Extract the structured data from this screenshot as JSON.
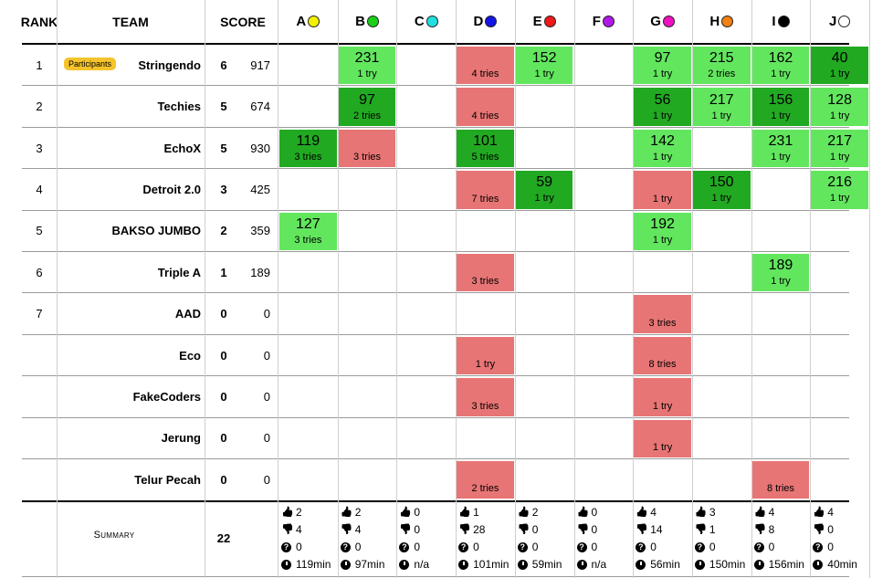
{
  "headers": {
    "rank": "RANK",
    "team": "TEAM",
    "score": "SCORE"
  },
  "problems": [
    {
      "label": "A",
      "color": "#f4f100"
    },
    {
      "label": "B",
      "color": "#18d018"
    },
    {
      "label": "C",
      "color": "#20e0e0"
    },
    {
      "label": "D",
      "color": "#1414e8"
    },
    {
      "label": "E",
      "color": "#f01818"
    },
    {
      "label": "F",
      "color": "#b018e8"
    },
    {
      "label": "G",
      "color": "#f010c0"
    },
    {
      "label": "H",
      "color": "#f08010"
    },
    {
      "label": "I",
      "color": "#000000"
    },
    {
      "label": "J",
      "color": "#ffffff"
    }
  ],
  "teams": [
    {
      "rank": "1",
      "name": "Stringendo",
      "badge": "Participants",
      "solved": "6",
      "points": "917",
      "cells": [
        null,
        {
          "t": "231",
          "tries": "1 try",
          "s": "solved"
        },
        null,
        {
          "tries": "4 tries",
          "s": "fail"
        },
        {
          "t": "152",
          "tries": "1 try",
          "s": "solved"
        },
        null,
        {
          "t": "97",
          "tries": "1 try",
          "s": "solved"
        },
        {
          "t": "215",
          "tries": "2 tries",
          "s": "solved"
        },
        {
          "t": "162",
          "tries": "1 try",
          "s": "solved"
        },
        {
          "t": "40",
          "tries": "1 try",
          "s": "first"
        }
      ]
    },
    {
      "rank": "2",
      "name": "Techies",
      "solved": "5",
      "points": "674",
      "cells": [
        null,
        {
          "t": "97",
          "tries": "2 tries",
          "s": "first"
        },
        null,
        {
          "tries": "4 tries",
          "s": "fail"
        },
        null,
        null,
        {
          "t": "56",
          "tries": "1 try",
          "s": "first"
        },
        {
          "t": "217",
          "tries": "1 try",
          "s": "solved"
        },
        {
          "t": "156",
          "tries": "1 try",
          "s": "first"
        },
        {
          "t": "128",
          "tries": "1 try",
          "s": "solved"
        }
      ]
    },
    {
      "rank": "3",
      "name": "EchoX",
      "solved": "5",
      "points": "930",
      "cells": [
        {
          "t": "119",
          "tries": "3 tries",
          "s": "first"
        },
        {
          "tries": "3 tries",
          "s": "fail"
        },
        null,
        {
          "t": "101",
          "tries": "5 tries",
          "s": "first"
        },
        null,
        null,
        {
          "t": "142",
          "tries": "1 try",
          "s": "solved"
        },
        null,
        {
          "t": "231",
          "tries": "1 try",
          "s": "solved"
        },
        {
          "t": "217",
          "tries": "1 try",
          "s": "solved"
        }
      ]
    },
    {
      "rank": "4",
      "name": "Detroit 2.0",
      "solved": "3",
      "points": "425",
      "cells": [
        null,
        null,
        null,
        {
          "tries": "7 tries",
          "s": "fail"
        },
        {
          "t": "59",
          "tries": "1 try",
          "s": "first"
        },
        null,
        {
          "tries": "1 try",
          "s": "fail"
        },
        {
          "t": "150",
          "tries": "1 try",
          "s": "first"
        },
        null,
        {
          "t": "216",
          "tries": "1 try",
          "s": "solved"
        }
      ]
    },
    {
      "rank": "5",
      "name": "BAKSO JUMBO",
      "solved": "2",
      "points": "359",
      "cells": [
        {
          "t": "127",
          "tries": "3 tries",
          "s": "solved"
        },
        null,
        null,
        null,
        null,
        null,
        {
          "t": "192",
          "tries": "1 try",
          "s": "solved"
        },
        null,
        null,
        null
      ]
    },
    {
      "rank": "6",
      "name": "Triple A",
      "solved": "1",
      "points": "189",
      "cells": [
        null,
        null,
        null,
        {
          "tries": "3 tries",
          "s": "fail"
        },
        null,
        null,
        null,
        null,
        {
          "t": "189",
          "tries": "1 try",
          "s": "solved"
        },
        null
      ]
    },
    {
      "rank": "7",
      "name": "AAD",
      "solved": "0",
      "points": "0",
      "cells": [
        null,
        null,
        null,
        null,
        null,
        null,
        {
          "tries": "3 tries",
          "s": "fail"
        },
        null,
        null,
        null
      ]
    },
    {
      "rank": "",
      "name": "Eco",
      "solved": "0",
      "points": "0",
      "cells": [
        null,
        null,
        null,
        {
          "tries": "1 try",
          "s": "fail"
        },
        null,
        null,
        {
          "tries": "8 tries",
          "s": "fail"
        },
        null,
        null,
        null
      ]
    },
    {
      "rank": "",
      "name": "FakeCoders",
      "solved": "0",
      "points": "0",
      "cells": [
        null,
        null,
        null,
        {
          "tries": "3 tries",
          "s": "fail"
        },
        null,
        null,
        {
          "tries": "1 try",
          "s": "fail"
        },
        null,
        null,
        null
      ]
    },
    {
      "rank": "",
      "name": "Jerung",
      "solved": "0",
      "points": "0",
      "cells": [
        null,
        null,
        null,
        null,
        null,
        null,
        {
          "tries": "1 try",
          "s": "fail"
        },
        null,
        null,
        null
      ]
    },
    {
      "rank": "",
      "name": "Telur Pecah",
      "solved": "0",
      "points": "0",
      "cells": [
        null,
        null,
        null,
        {
          "tries": "2 tries",
          "s": "fail"
        },
        null,
        null,
        null,
        null,
        {
          "tries": "8 tries",
          "s": "fail"
        },
        null
      ]
    }
  ],
  "summary": {
    "label": "Summary",
    "solved": "22",
    "problems": [
      {
        "accepted": "2",
        "rejected": "4",
        "pending": "0",
        "first": "119min"
      },
      {
        "accepted": "2",
        "rejected": "4",
        "pending": "0",
        "first": "97min"
      },
      {
        "accepted": "0",
        "rejected": "0",
        "pending": "0",
        "first": "n/a"
      },
      {
        "accepted": "1",
        "rejected": "28",
        "pending": "0",
        "first": "101min"
      },
      {
        "accepted": "2",
        "rejected": "0",
        "pending": "0",
        "first": "59min"
      },
      {
        "accepted": "0",
        "rejected": "0",
        "pending": "0",
        "first": "n/a"
      },
      {
        "accepted": "4",
        "rejected": "14",
        "pending": "0",
        "first": "56min"
      },
      {
        "accepted": "3",
        "rejected": "1",
        "pending": "0",
        "first": "150min"
      },
      {
        "accepted": "4",
        "rejected": "8",
        "pending": "0",
        "first": "156min"
      },
      {
        "accepted": "4",
        "rejected": "0",
        "pending": "0",
        "first": "40min"
      }
    ]
  },
  "icons": {
    "thumbs_up": "thumbs-up-icon",
    "thumbs_down": "thumbs-down-icon",
    "pending": "question-icon",
    "first_solve": "clock-icon"
  }
}
